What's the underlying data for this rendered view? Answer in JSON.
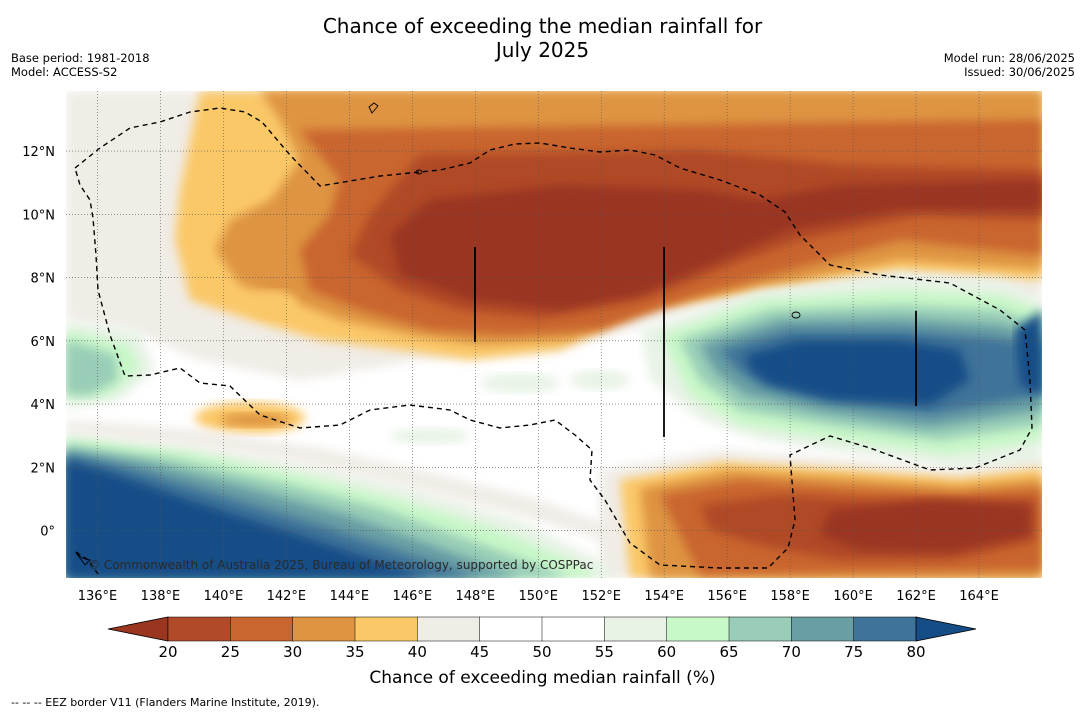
{
  "title": {
    "line1": "Chance of exceeding the median rainfall for",
    "line2": "July 2025"
  },
  "meta_left": {
    "base_period": "Base period: 1981-2018",
    "model": "Model: ACCESS-S2"
  },
  "meta_right": {
    "model_run": "Model run: 28/06/2025",
    "issued": "Issued: 30/06/2025"
  },
  "map": {
    "lon_ticks": [
      "136°E",
      "138°E",
      "140°E",
      "142°E",
      "144°E",
      "146°E",
      "148°E",
      "150°E",
      "152°E",
      "154°E",
      "156°E",
      "158°E",
      "160°E",
      "162°E",
      "164°E"
    ],
    "lon_values": [
      136,
      138,
      140,
      142,
      144,
      146,
      148,
      150,
      152,
      154,
      156,
      158,
      160,
      162,
      164
    ],
    "lat_ticks": [
      "12°N",
      "10°N",
      "8°N",
      "6°N",
      "4°N",
      "2°N",
      "0°"
    ],
    "lat_values": [
      12,
      10,
      8,
      6,
      4,
      2,
      0
    ],
    "extent": {
      "lon_min": 135,
      "lon_max": 166,
      "lat_min": -1.5,
      "lat_max": 13.9
    },
    "copyright": "© Commonwealth of Australia 2025, Bureau of Meteorology, supported by COSPPac"
  },
  "colorbar": {
    "ticks": [
      "20",
      "25",
      "30",
      "35",
      "40",
      "45",
      "50",
      "55",
      "60",
      "65",
      "70",
      "75",
      "80"
    ],
    "colors": [
      "#9a3520",
      "#b04a28",
      "#c9652e",
      "#de9443",
      "#fbc867",
      "#f0ece6",
      "#ffffff",
      "#ffffff",
      "#e8f3e6",
      "#c8f7c8",
      "#99cdb7",
      "#689ea4",
      "#3f7399",
      "#154d87"
    ],
    "label": "Chance of exceeding median rainfall (%)"
  },
  "legend_note": "--  --  -- EEZ border V11 (Flanders Marine Institute, 2019)."
}
